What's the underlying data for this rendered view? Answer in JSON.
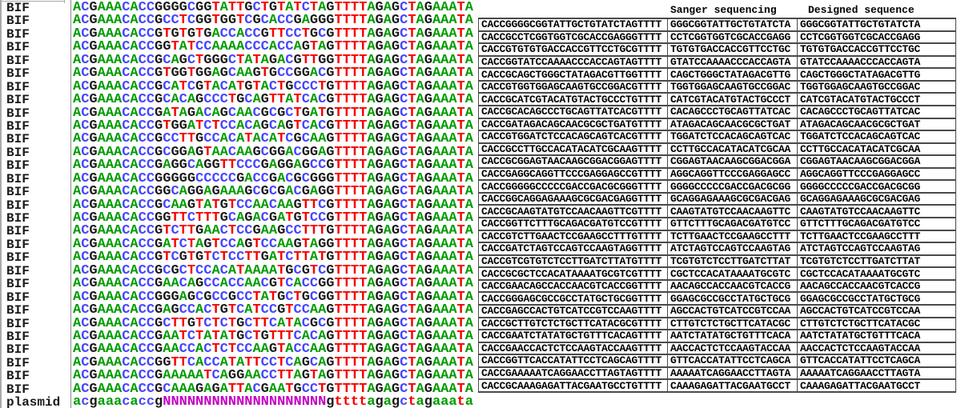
{
  "alignment": {
    "nucleotide_colors": {
      "A": "#009c00",
      "C": "#4646ff",
      "G": "#1a1a1a",
      "T": "#f40000",
      "N": "#c400c4"
    },
    "rows": [
      {
        "label": "BIF",
        "seq": "ACGAAACACCGGGGCGGTATTGCTGTATCTAGTTTTAGAGCTAGAAATA"
      },
      {
        "label": "BIF",
        "seq": "ACGAAACACCGCCTCGGTGGTCGCACCGAGGGTTTTAGAGCTAGAAATA"
      },
      {
        "label": "BIF",
        "seq": "ACGAAACACCGTGTGTGACCACCGTTCCTGCGTTTTAGAGCTAGAAATA"
      },
      {
        "label": "BIF",
        "seq": "ACGAAACACCGGTATCCAAAACCCACCAGTAGTTTTAGAGCTAGAAATA"
      },
      {
        "label": "BIF",
        "seq": "ACGAAACACCGCAGCTGGGCTATAGACGTTGGTTTTAGAGCTAGAAATA"
      },
      {
        "label": "BIF",
        "seq": "ACGAAACACCGTGGTGGAGCAAGTGCCGGACGTTTTAGAGCTAGAAATA"
      },
      {
        "label": "BIF",
        "seq": "ACGAAACACCGCATCGTACATGTACTGCCCTGTTTTAGAGCTAGAAATA"
      },
      {
        "label": "BIF",
        "seq": "ACGAAACACCGCACAGCCCTGCAGTTATCACGTTTTAGAGCTAGAAATA"
      },
      {
        "label": "BIF",
        "seq": "ACGAAACACCGATAGACAGCAACGCGCTGATGTTTTAGAGCTAGAAATA"
      },
      {
        "label": "BIF",
        "seq": "ACGAAACACCGTGGATCTCCACAGCAGTCACGTTTTAGAGCTAGAAATA"
      },
      {
        "label": "BIF",
        "seq": "ACGAAACACCGCCTTGCCACATACATCGCAAGTTTTAGAGCTAGAAATA"
      },
      {
        "label": "BIF",
        "seq": "ACGAAACACCGCGGAGTAACAAGCGGACGGAGTTTTAGAGCTAGAAATA"
      },
      {
        "label": "BIF",
        "seq": "ACGAAACACCGAGGCAGGTTCCCGAGGAGCCGTTTTAGAGCTAGAAATA"
      },
      {
        "label": "BIF",
        "seq": "ACGAAACACCGGGGGCCCCCGACCGACGCGGGTTTTAGAGCTAGAAATA"
      },
      {
        "label": "BIF",
        "seq": "ACGAAACACCGGCAGGAGAAAGCGCGACGAGGTTTTAGAGCTAGAAATA"
      },
      {
        "label": "BIF",
        "seq": "ACGAAACACCGCAAGTATGTCCAACAAGTTCGTTTTAGAGCTAGAAATA"
      },
      {
        "label": "BIF",
        "seq": "ACGAAACACCGGTTCTTTGCAGACGATGTCCGTTTTAGAGCTAGAAATA"
      },
      {
        "label": "BIF",
        "seq": "ACGAAACACCGTCTTGAACTCCGAAGCCTTTGTTTTAGAGCTAGAAATA"
      },
      {
        "label": "BIF",
        "seq": "ACGAAACACCGATCTAGTCCAGTCCAAGTAGGTTTTAGAGCTAGAAATA"
      },
      {
        "label": "BIF",
        "seq": "ACGAAACACCGTCGTGTCTCCTTGATCTTATGTTTTAGAGCTAGAAATA"
      },
      {
        "label": "BIF",
        "seq": "ACGAAACACCGCGCTCCACATAAAATGCGTCGTTTTAGAGCTAGAAATA"
      },
      {
        "label": "BIF",
        "seq": "ACGAAACACCGAACAGCCACCAACGTCACCGGTTTTAGAGCTAGAAATA"
      },
      {
        "label": "BIF",
        "seq": "ACGAAACACCGGGAGCGCCGCCTATGCTGCGGTTTTAGAGCTAGAAATA"
      },
      {
        "label": "BIF",
        "seq": "ACGAAACACCGAGCCACTGTCATCCGTCCAAGTTTTAGAGCTAGAAATA"
      },
      {
        "label": "BIF",
        "seq": "ACGAAACACCGCTTGTCTCTGCTTCATACGCGTTTTAGAGCTAGAAATA"
      },
      {
        "label": "BIF",
        "seq": "ACGAAACACCGAATCTATATGCTGTTTCACAGTTTTAGAGCTAGAAATA"
      },
      {
        "label": "BIF",
        "seq": "ACGAAACACCGAACCACTCTCCAAGTACCAAGTTTTAGAGCTAGAAATA"
      },
      {
        "label": "BIF",
        "seq": "ACGAAACACCGGTTCACCATATTCCTCAGCAGTTTTAGAGCTAGAAATA"
      },
      {
        "label": "BIF",
        "seq": "ACGAAACACCGAAAAATCAGGAACCTTAGTAGTTTTAGAGCTAGAAATA"
      },
      {
        "label": "BIF",
        "seq": "ACGAAACACCGCAAAGAGATTACGAATGCCTGTTTTAGAGCTAGAAATA"
      },
      {
        "label": "plasmid",
        "seq": "acgaaacaccgNNNNNNNNNNNNNNNNNNNNgttttagagctagaaata"
      }
    ]
  },
  "table": {
    "headers": {
      "sanger": "Sanger sequencing",
      "designed": "Designed sequence"
    },
    "rows": [
      {
        "oligo": "CACCGGGGCGGTATTGCTGTATCTAGTTTT",
        "sanger": "GGGCGGTATTGCTGTATCTA",
        "designed": "GGGCGGTATTGCTGTATCTA"
      },
      {
        "oligo": "CACCGCCTCGGTGGTCGCACCGAGGGTTTT",
        "sanger": "CCTCGGTGGTCGCACCGAGG",
        "designed": "CCTCGGTGGTCGCACCGAGG"
      },
      {
        "oligo": "CACCGTGTGTGACCACCGTTCCTGCGTTTT",
        "sanger": "TGTGTGACCACCGTTCCTGC",
        "designed": "TGTGTGACCACCGTTCCTGC"
      },
      {
        "oligo": "CACCGGTATCCAAAACCCACCAGTAGTTTT",
        "sanger": "GTATCCAAAACCCACCAGTA",
        "designed": "GTATCCAAAACCCACCAGTA"
      },
      {
        "oligo": "CACCGCAGCTGGGCTATAGACGTTGGTTTT",
        "sanger": "CAGCTGGGCTATAGACGTTG",
        "designed": "CAGCTGGGCTATAGACGTTG"
      },
      {
        "oligo": "CACCGTGGTGGAGCAAGTGCCGGACGTTTT",
        "sanger": "TGGTGGAGCAAGTGCCGGAC",
        "designed": "TGGTGGAGCAAGTGCCGGAC"
      },
      {
        "oligo": "CACCGCATCGTACATGTACTGCCCTGTTTT",
        "sanger": "CATCGTACATGTACTGCCCT",
        "designed": "CATCGTACATGTACTGCCCT"
      },
      {
        "oligo": "CACCGCACAGCCCTGCAGTTATCACGTTTT",
        "sanger": "CACAGCCCTGCAGTTATCAC",
        "designed": "CACAGCCCTGCAGTTATCAC"
      },
      {
        "oligo": "CACCGATAGACAGCAACGCGCTGATGTTTT",
        "sanger": "ATAGACAGCAACGCGCTGAT",
        "designed": "ATAGACAGCAACGCGCTGAT"
      },
      {
        "oligo": "CACCGTGGATCTCCACAGCAGTCACGTTTT",
        "sanger": "TGGATCTCCACAGCAGTCAC",
        "designed": "TGGATCTCCACAGCAGTCAC"
      },
      {
        "oligo": "CACCGCCTTGCCACATACATCGCAAGTTTT",
        "sanger": "CCTTGCCACATACATCGCAA",
        "designed": "CCTTGCCACATACATCGCAA"
      },
      {
        "oligo": "CACCGCGGAGTAACAAGCGGACGGAGTTTT",
        "sanger": "CGGAGTAACAAGCGGACGGA",
        "designed": "CGGAGTAACAAGCGGACGGA"
      },
      {
        "oligo": "CACCGAGGCAGGTTCCCGAGGAGCCGTTTT",
        "sanger": "AGGCAGGTTCCCGAGGAGCC",
        "designed": "AGGCAGGTTCCCGAGGAGCC"
      },
      {
        "oligo": "CACCGGGGGCCCCCGACCGACGCGGGTTTT",
        "sanger": "GGGGCCCCCGACCGACGCGG",
        "designed": "GGGGCCCCCGACCGACGCGG"
      },
      {
        "oligo": "CACCGGCAGGAGAAAGCGCGACGAGGTTTT",
        "sanger": "GCAGGAGAAAGCGCGACGAG",
        "designed": "GCAGGAGAAAGCGCGACGAG"
      },
      {
        "oligo": "CACCGCAAGTATGTCCAACAAGTTCGTTTT",
        "sanger": "CAAGTATGTCCAACAAGTTC",
        "designed": "CAAGTATGTCCAACAAGTTC"
      },
      {
        "oligo": "CACCGGTTCTTTGCAGACGATGTCCGTTTT",
        "sanger": "GTTCTTTGCAGACGATGTCC",
        "designed": "GTTCTTTGCAGACGATGTCC"
      },
      {
        "oligo": "CACCGTCTTGAACTCCGAAGCCTTTGTTTT",
        "sanger": "TCTTGAACTCCGAAGCCTTT",
        "designed": "TCTTGAACTCCGAAGCCTTT"
      },
      {
        "oligo": "CACCGATCTAGTCCAGTCCAAGTAGGTTTT",
        "sanger": "ATCTAGTCCAGTCCAAGTAG",
        "designed": "ATCTAGTCCAGTCCAAGTAG"
      },
      {
        "oligo": "CACCGTCGTGTCTCCTTGATCTTATGTTTT",
        "sanger": "TCGTGTCTCCTTGATCTTAT",
        "designed": "TCGTGTCTCCTTGATCTTAT"
      },
      {
        "oligo": "CACCGCGCTCCACATAAAATGCGTCGTTTT",
        "sanger": "CGCTCCACATAAAATGCGTC",
        "designed": "CGCTCCACATAAAATGCGTC"
      },
      {
        "oligo": "CACCGAACAGCCACCAACGTCACCGGTTTT",
        "sanger": "AACAGCCACCAACGTCACCG",
        "designed": "AACAGCCACCAACGTCACCG"
      },
      {
        "oligo": "CACCGGGAGCGCCGCCTATGCTGCGGTTTT",
        "sanger": "GGAGCGCCGCCTATGCTGCG",
        "designed": "GGAGCGCCGCCTATGCTGCG"
      },
      {
        "oligo": "CACCGAGCCACTGTCATCCGTCCAAGTTTT",
        "sanger": "AGCCACTGTCATCCGTCCAA",
        "designed": "AGCCACTGTCATCCGTCCAA"
      },
      {
        "oligo": "CACCGCTTGTCTCTGCTTCATACGCGTTTT",
        "sanger": "CTTGTCTCTGCTTCATACGC",
        "designed": "CTTGTCTCTGCTTCATACGC"
      },
      {
        "oligo": "CACCGAATCTATATGCTGTTTCACAGTTTT",
        "sanger": "AATCTATATGCTGTTTCACA",
        "designed": "AATCTATATGCTGTTTCACA"
      },
      {
        "oligo": "CACCGAACCACTCTCCAAGTACCAAGTTTT",
        "sanger": "AACCACTCTCCAAGTACCAA",
        "designed": "AACCACTCTCCAAGTACCAA"
      },
      {
        "oligo": "CACCGGTTCACCATATTCCTCAGCAGTTTT",
        "sanger": "GTTCACCATATTCCTCAGCA",
        "designed": "GTTCACCATATTCCTCAGCA"
      },
      {
        "oligo": "CACCGAAAAATCAGGAACCTTAGTAGTTTT",
        "sanger": "AAAAATCAGGAACCTTAGTA",
        "designed": "AAAAATCAGGAACCTTAGTA"
      },
      {
        "oligo": "CACCGCAAAGAGATTACGAATGCCTGTTTT",
        "sanger": "CAAAGAGATTACGAATGCCT",
        "designed": "CAAAGAGATTACGAATGCCT"
      }
    ]
  }
}
